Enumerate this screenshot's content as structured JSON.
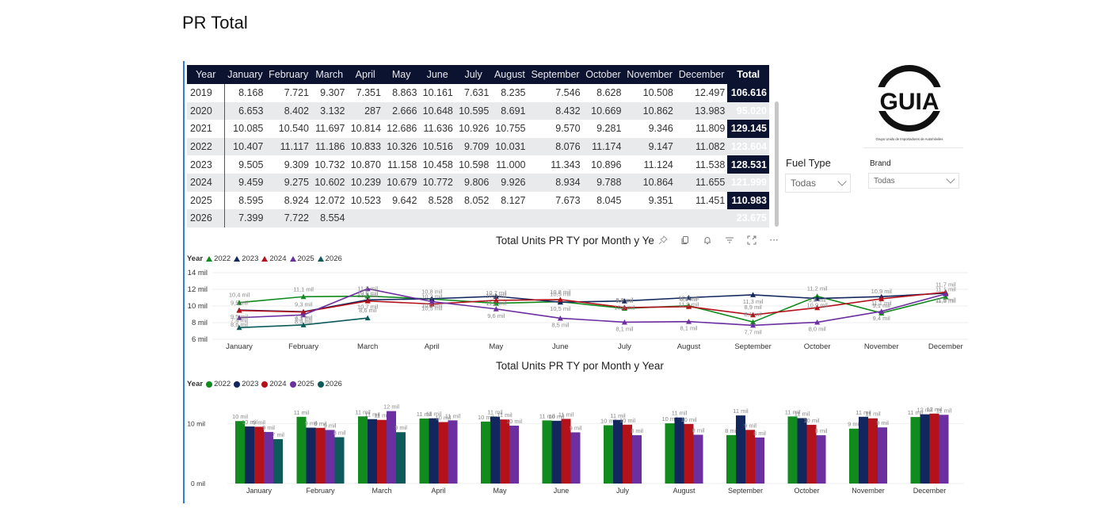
{
  "page_title": "PR  Total",
  "table": {
    "headers": [
      "Year",
      "January",
      "February",
      "March",
      "April",
      "May",
      "June",
      "July",
      "August",
      "September",
      "October",
      "November",
      "December",
      "Total"
    ],
    "rows": [
      {
        "year": "2019",
        "values": [
          "8.168",
          "7.721",
          "9.307",
          "7.351",
          "8.863",
          "10.161",
          "7.631",
          "8.235",
          "7.546",
          "8.628",
          "10.508",
          "12.497"
        ],
        "total": "106.616"
      },
      {
        "year": "2020",
        "values": [
          "6.653",
          "8.402",
          "3.132",
          "287",
          "2.666",
          "10.648",
          "10.595",
          "8.691",
          "8.432",
          "10.669",
          "10.862",
          "13.983"
        ],
        "total": "95.020"
      },
      {
        "year": "2021",
        "values": [
          "10.085",
          "10.540",
          "11.697",
          "10.814",
          "12.686",
          "11.636",
          "10.926",
          "10.755",
          "9.570",
          "9.281",
          "9.346",
          "11.809"
        ],
        "total": "129.145"
      },
      {
        "year": "2022",
        "values": [
          "10.407",
          "11.117",
          "11.186",
          "10.833",
          "10.326",
          "10.516",
          "9.709",
          "10.031",
          "8.076",
          "11.174",
          "9.147",
          "11.082"
        ],
        "total": "123.604"
      },
      {
        "year": "2023",
        "values": [
          "9.505",
          "9.309",
          "10.732",
          "10.870",
          "11.158",
          "10.458",
          "10.598",
          "11.000",
          "11.343",
          "10.896",
          "11.124",
          "11.538"
        ],
        "total": "128.531"
      },
      {
        "year": "2024",
        "values": [
          "9.459",
          "9.275",
          "10.602",
          "10.239",
          "10.679",
          "10.772",
          "9.806",
          "9.926",
          "8.934",
          "9.788",
          "10.864",
          "11.655"
        ],
        "total": "121.999"
      },
      {
        "year": "2025",
        "values": [
          "8.595",
          "8.924",
          "12.072",
          "10.523",
          "9.642",
          "8.528",
          "8.052",
          "8.127",
          "7.673",
          "8.045",
          "9.351",
          "11.451"
        ],
        "total": "110.983"
      },
      {
        "year": "2026",
        "values": [
          "7.399",
          "7.722",
          "8.554",
          "",
          "",
          "",
          "",
          "",
          "",
          "",
          "",
          ""
        ],
        "total": "23.675"
      }
    ]
  },
  "logo": {
    "text": "GUIA",
    "subtitle": "Grupo Unido de Importadores de Automóviles"
  },
  "slicers": {
    "fuel_type": {
      "label": "Fuel Type",
      "value": "Todas"
    },
    "brand": {
      "label": "Brand",
      "value": "Todas"
    }
  },
  "toolbar_icons": [
    "pin-icon",
    "copy-icon",
    "bell-icon",
    "filter-icon",
    "focus-mode-icon",
    "more-options-icon"
  ],
  "toolbar_more": "···",
  "chart_data": [
    {
      "type": "line",
      "title": "Total Units PR TY por Month y Year",
      "legend_title": "Year",
      "legend_position": "top-left",
      "categories": [
        "January",
        "February",
        "March",
        "April",
        "May",
        "June",
        "July",
        "August",
        "September",
        "October",
        "November",
        "December"
      ],
      "ylim": [
        6,
        14
      ],
      "yticks": [
        "6 mil",
        "8 mil",
        "10 mil",
        "12 mil",
        "14 mil"
      ],
      "ytick_values": [
        6,
        8,
        10,
        12,
        14
      ],
      "grid": true,
      "series": [
        {
          "name": "2022",
          "color": "#118a1e",
          "values": [
            10.407,
            11.117,
            11.186,
            10.833,
            10.326,
            10.516,
            9.709,
            10.031,
            8.076,
            11.174,
            9.147,
            11.082
          ]
        },
        {
          "name": "2023",
          "color": "#12275e",
          "values": [
            9.505,
            9.309,
            10.732,
            10.87,
            11.158,
            10.458,
            10.598,
            11.0,
            11.343,
            10.896,
            11.124,
            11.538
          ]
        },
        {
          "name": "2024",
          "color": "#b3121b",
          "values": [
            9.459,
            9.275,
            10.602,
            10.239,
            10.679,
            10.772,
            9.806,
            9.926,
            8.934,
            9.788,
            10.864,
            11.655
          ]
        },
        {
          "name": "2025",
          "color": "#6b2fa0",
          "values": [
            8.595,
            8.924,
            12.072,
            10.523,
            9.642,
            8.528,
            8.052,
            8.127,
            7.673,
            8.045,
            9.351,
            11.451
          ]
        },
        {
          "name": "2026",
          "color": "#0d5a5a",
          "values": [
            7.399,
            7.722,
            8.554,
            null,
            null,
            null,
            null,
            null,
            null,
            null,
            null,
            null
          ]
        }
      ],
      "data_labels": [
        [
          "10,4 mil",
          "11,1 mil",
          "11,2 mil",
          "10,8 mil",
          "10,3 mil",
          "10,5 mil",
          "9,7 mil",
          "10,0 mil",
          "8,1 mil",
          "11,2 mil",
          "9,1 mil",
          "11,1 mil"
        ],
        [
          "9,5 mil",
          "9,3 mil",
          "10,7 mil",
          "10,9 mil",
          "11,2 mil",
          "10,5 mil",
          "10,6 mil",
          "11,0 mil",
          "11,3 mil",
          "10,9 mil",
          "11,1 mil",
          "11,5 mil"
        ],
        [
          "9,5 mil",
          "9,3 mil",
          "10,6 mil",
          "10,2 mil",
          "10,7 mil",
          "10,8 mil",
          "9,8 mil",
          "9,9 mil",
          "8,9 mil",
          "9,8 mil",
          "10,9 mil",
          "11,7 mil"
        ],
        [
          "8,6 mil",
          "8,9 mil",
          "12,1 mil",
          "10,5 mil",
          "9,6 mil",
          "8,5 mil",
          "8,1 mil",
          "8,1 mil",
          "7,7 mil",
          "8,0 mil",
          "9,4 mil",
          "11,5 mil"
        ],
        [
          "7,4 mil",
          "7,7 mil",
          "8,6 mil",
          null,
          null,
          null,
          null,
          null,
          null,
          null,
          null,
          null
        ]
      ]
    },
    {
      "type": "bar",
      "title": "Total Units PR TY por Month y Year",
      "legend_title": "Year",
      "legend_position": "top-left",
      "categories": [
        "January",
        "February",
        "March",
        "April",
        "May",
        "June",
        "July",
        "August",
        "September",
        "October",
        "November",
        "December"
      ],
      "ylim": [
        0,
        14
      ],
      "yticks": [
        "0 mil",
        "10 mil"
      ],
      "ytick_values": [
        0,
        10
      ],
      "grid": true,
      "series": [
        {
          "name": "2022",
          "color": "#118a1e",
          "values": [
            10.407,
            11.117,
            11.186,
            10.833,
            10.326,
            10.516,
            9.709,
            10.031,
            8.076,
            11.174,
            9.147,
            11.082
          ]
        },
        {
          "name": "2023",
          "color": "#12275e",
          "values": [
            9.505,
            9.309,
            10.732,
            10.87,
            11.158,
            10.458,
            10.598,
            11.0,
            11.343,
            10.896,
            11.124,
            11.538
          ]
        },
        {
          "name": "2024",
          "color": "#b3121b",
          "values": [
            9.459,
            9.275,
            10.602,
            10.239,
            10.679,
            10.772,
            9.806,
            9.926,
            8.934,
            9.788,
            10.864,
            11.655
          ]
        },
        {
          "name": "2025",
          "color": "#6b2fa0",
          "values": [
            8.595,
            8.924,
            12.072,
            10.523,
            9.642,
            8.528,
            8.052,
            8.127,
            7.673,
            8.045,
            9.351,
            11.451
          ]
        },
        {
          "name": "2026",
          "color": "#0d5a5a",
          "values": [
            7.399,
            7.722,
            8.554,
            null,
            null,
            null,
            null,
            null,
            null,
            null,
            null,
            null
          ]
        }
      ],
      "data_labels": [
        [
          "10 mil",
          "11 mil",
          "11 mil",
          "11 mil",
          "10 mil",
          "11 mil",
          "10 mil",
          "10 mil",
          "8 mil",
          "11 mil",
          "9 mil",
          "11 mil"
        ],
        [
          "10 mil",
          "9 mil",
          "11 mil",
          "11 mil",
          "11 mil",
          "10 mil",
          "11 mil",
          "11 mil",
          "11 mil",
          "11 mil",
          "11 mil",
          "12 mil"
        ],
        [
          "9 mil",
          "9 mil",
          "11 mil",
          "10 mil",
          "11 mil",
          "11 mil",
          "10 mil",
          "10 mil",
          "9 mil",
          "10 mil",
          "11 mil",
          "12 mil"
        ],
        [
          "9 mil",
          "9 mil",
          "12 mil",
          "11 mil",
          "10 mil",
          "9 mil",
          "8 mil",
          "8 mil",
          "8 mil",
          "8 mil",
          "9 mil",
          "11 mil"
        ],
        [
          "7 mil",
          "8 mil",
          "9 mil",
          null,
          null,
          null,
          null,
          null,
          null,
          null,
          null,
          null
        ]
      ]
    }
  ]
}
